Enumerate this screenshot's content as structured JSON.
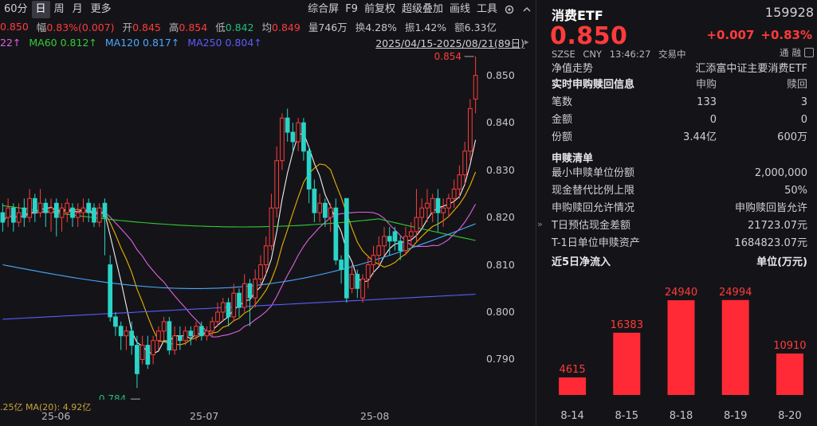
{
  "toolbar": {
    "periods": [
      "60分",
      "日",
      "周",
      "月",
      "更多"
    ],
    "active_period": "日",
    "tools": [
      "综合屏",
      "F9",
      "前复权",
      "超级叠加",
      "画线",
      "工具"
    ]
  },
  "stats": {
    "close": "0.850",
    "amp_label": "幅",
    "amp_value": "0.83%(0.007)",
    "open_label": "开",
    "open_value": "0.845",
    "high_label": "高",
    "high_value": "0.854",
    "low_label": "低",
    "low_value": "0.842",
    "avg_label": "均",
    "avg_value": "0.849",
    "vol_label": "量",
    "vol_value": "746万",
    "turnover_label": "换",
    "turnover_value": "4.28%",
    "swing_label": "振",
    "swing_value": "1.42%",
    "amount_label": "额",
    "amount_value": "6.33亿"
  },
  "ma_legend": [
    {
      "label": "22↑",
      "color": "#e060e0"
    },
    {
      "label": "MA60 0.812↑",
      "color": "#33cc33"
    },
    {
      "label": "MA120 0.817↑",
      "color": "#4aa8ff"
    },
    {
      "label": "MA250 0.804↑",
      "color": "#5b5bff"
    }
  ],
  "date_range": "2025/04/15-2025/08/21(89日)",
  "volume_legend": ".25亿  MA(20): 4.92亿",
  "chart_data": {
    "type": "candlestick",
    "y_ticks": [
      "0.850",
      "0.840",
      "0.830",
      "0.820",
      "0.810",
      "0.800",
      "0.790"
    ],
    "ylim": [
      0.7815,
      0.8555
    ],
    "x_ticks": [
      "25-06",
      "25-07",
      "25-08"
    ],
    "max_label": "0.854",
    "min_label": "0.784",
    "candles": [
      {
        "o": 0.821,
        "c": 0.819,
        "h": 0.823,
        "l": 0.817
      },
      {
        "o": 0.82,
        "c": 0.822,
        "h": 0.824,
        "l": 0.818
      },
      {
        "o": 0.822,
        "c": 0.819,
        "h": 0.823,
        "l": 0.817
      },
      {
        "o": 0.819,
        "c": 0.821,
        "h": 0.823,
        "l": 0.818
      },
      {
        "o": 0.822,
        "c": 0.82,
        "h": 0.824,
        "l": 0.818
      },
      {
        "o": 0.82,
        "c": 0.824,
        "h": 0.826,
        "l": 0.819
      },
      {
        "o": 0.824,
        "c": 0.821,
        "h": 0.825,
        "l": 0.819
      },
      {
        "o": 0.821,
        "c": 0.823,
        "h": 0.826,
        "l": 0.82
      },
      {
        "o": 0.823,
        "c": 0.821,
        "h": 0.824,
        "l": 0.818
      },
      {
        "o": 0.821,
        "c": 0.822,
        "h": 0.824,
        "l": 0.817
      },
      {
        "o": 0.823,
        "c": 0.82,
        "h": 0.824,
        "l": 0.816
      },
      {
        "o": 0.82,
        "c": 0.822,
        "h": 0.823,
        "l": 0.817
      },
      {
        "o": 0.821,
        "c": 0.823,
        "h": 0.824,
        "l": 0.819
      },
      {
        "o": 0.822,
        "c": 0.82,
        "h": 0.823,
        "l": 0.818
      },
      {
        "o": 0.82,
        "c": 0.821,
        "h": 0.823,
        "l": 0.818
      },
      {
        "o": 0.821,
        "c": 0.822,
        "h": 0.824,
        "l": 0.819
      },
      {
        "o": 0.823,
        "c": 0.821,
        "h": 0.824,
        "l": 0.819
      },
      {
        "o": 0.822,
        "c": 0.819,
        "h": 0.823,
        "l": 0.818
      },
      {
        "o": 0.819,
        "c": 0.822,
        "h": 0.823,
        "l": 0.818
      },
      {
        "o": 0.823,
        "c": 0.82,
        "h": 0.824,
        "l": 0.812
      },
      {
        "o": 0.81,
        "c": 0.799,
        "h": 0.812,
        "l": 0.798
      },
      {
        "o": 0.799,
        "c": 0.797,
        "h": 0.8,
        "l": 0.795
      },
      {
        "o": 0.797,
        "c": 0.795,
        "h": 0.798,
        "l": 0.792
      },
      {
        "o": 0.795,
        "c": 0.796,
        "h": 0.797,
        "l": 0.792
      },
      {
        "o": 0.796,
        "c": 0.793,
        "h": 0.798,
        "l": 0.791
      },
      {
        "o": 0.793,
        "c": 0.787,
        "h": 0.795,
        "l": 0.784
      },
      {
        "o": 0.79,
        "c": 0.793,
        "h": 0.795,
        "l": 0.789
      },
      {
        "o": 0.793,
        "c": 0.789,
        "h": 0.795,
        "l": 0.788
      },
      {
        "o": 0.791,
        "c": 0.794,
        "h": 0.795,
        "l": 0.789
      },
      {
        "o": 0.794,
        "c": 0.796,
        "h": 0.797,
        "l": 0.792
      },
      {
        "o": 0.796,
        "c": 0.798,
        "h": 0.799,
        "l": 0.794
      },
      {
        "o": 0.798,
        "c": 0.792,
        "h": 0.799,
        "l": 0.791
      },
      {
        "o": 0.792,
        "c": 0.795,
        "h": 0.797,
        "l": 0.791
      },
      {
        "o": 0.795,
        "c": 0.794,
        "h": 0.797,
        "l": 0.792
      },
      {
        "o": 0.794,
        "c": 0.796,
        "h": 0.797,
        "l": 0.793
      },
      {
        "o": 0.796,
        "c": 0.795,
        "h": 0.797,
        "l": 0.793
      },
      {
        "o": 0.795,
        "c": 0.797,
        "h": 0.798,
        "l": 0.794
      },
      {
        "o": 0.797,
        "c": 0.795,
        "h": 0.798,
        "l": 0.794
      },
      {
        "o": 0.795,
        "c": 0.796,
        "h": 0.797,
        "l": 0.794
      },
      {
        "o": 0.796,
        "c": 0.798,
        "h": 0.799,
        "l": 0.795
      },
      {
        "o": 0.798,
        "c": 0.8,
        "h": 0.802,
        "l": 0.797
      },
      {
        "o": 0.8,
        "c": 0.802,
        "h": 0.803,
        "l": 0.798
      },
      {
        "o": 0.802,
        "c": 0.799,
        "h": 0.803,
        "l": 0.797
      },
      {
        "o": 0.799,
        "c": 0.804,
        "h": 0.806,
        "l": 0.798
      },
      {
        "o": 0.804,
        "c": 0.801,
        "h": 0.805,
        "l": 0.799
      },
      {
        "o": 0.801,
        "c": 0.806,
        "h": 0.808,
        "l": 0.8
      },
      {
        "o": 0.806,
        "c": 0.803,
        "h": 0.807,
        "l": 0.797
      },
      {
        "o": 0.803,
        "c": 0.807,
        "h": 0.809,
        "l": 0.801
      },
      {
        "o": 0.807,
        "c": 0.81,
        "h": 0.812,
        "l": 0.805
      },
      {
        "o": 0.81,
        "c": 0.814,
        "h": 0.816,
        "l": 0.808
      },
      {
        "o": 0.814,
        "c": 0.822,
        "h": 0.825,
        "l": 0.813
      },
      {
        "o": 0.822,
        "c": 0.832,
        "h": 0.835,
        "l": 0.82
      },
      {
        "o": 0.832,
        "c": 0.841,
        "h": 0.842,
        "l": 0.83
      },
      {
        "o": 0.841,
        "c": 0.838,
        "h": 0.843,
        "l": 0.836
      },
      {
        "o": 0.838,
        "c": 0.836,
        "h": 0.84,
        "l": 0.834
      },
      {
        "o": 0.836,
        "c": 0.84,
        "h": 0.841,
        "l": 0.834
      },
      {
        "o": 0.84,
        "c": 0.834,
        "h": 0.841,
        "l": 0.832
      },
      {
        "o": 0.834,
        "c": 0.826,
        "h": 0.835,
        "l": 0.823
      },
      {
        "o": 0.826,
        "c": 0.821,
        "h": 0.828,
        "l": 0.819
      },
      {
        "o": 0.821,
        "c": 0.823,
        "h": 0.825,
        "l": 0.819
      },
      {
        "o": 0.823,
        "c": 0.82,
        "h": 0.824,
        "l": 0.818
      },
      {
        "o": 0.82,
        "c": 0.822,
        "h": 0.823,
        "l": 0.817
      },
      {
        "o": 0.822,
        "c": 0.811,
        "h": 0.824,
        "l": 0.81
      },
      {
        "o": 0.811,
        "c": 0.809,
        "h": 0.812,
        "l": 0.806
      },
      {
        "o": 0.824,
        "c": 0.803,
        "h": 0.824,
        "l": 0.802
      },
      {
        "o": 0.805,
        "c": 0.808,
        "h": 0.81,
        "l": 0.804
      },
      {
        "o": 0.808,
        "c": 0.805,
        "h": 0.809,
        "l": 0.803
      },
      {
        "o": 0.803,
        "c": 0.807,
        "h": 0.808,
        "l": 0.802
      },
      {
        "o": 0.807,
        "c": 0.81,
        "h": 0.812,
        "l": 0.805
      },
      {
        "o": 0.81,
        "c": 0.812,
        "h": 0.814,
        "l": 0.808
      },
      {
        "o": 0.812,
        "c": 0.814,
        "h": 0.816,
        "l": 0.81
      },
      {
        "o": 0.814,
        "c": 0.816,
        "h": 0.818,
        "l": 0.812
      },
      {
        "o": 0.816,
        "c": 0.815,
        "h": 0.818,
        "l": 0.812
      },
      {
        "o": 0.817,
        "c": 0.815,
        "h": 0.818,
        "l": 0.813
      },
      {
        "o": 0.815,
        "c": 0.813,
        "h": 0.816,
        "l": 0.811
      },
      {
        "o": 0.813,
        "c": 0.816,
        "h": 0.818,
        "l": 0.812
      },
      {
        "o": 0.816,
        "c": 0.817,
        "h": 0.819,
        "l": 0.814
      },
      {
        "o": 0.817,
        "c": 0.82,
        "h": 0.826,
        "l": 0.815
      },
      {
        "o": 0.82,
        "c": 0.822,
        "h": 0.824,
        "l": 0.818
      },
      {
        "o": 0.822,
        "c": 0.823,
        "h": 0.826,
        "l": 0.819
      },
      {
        "o": 0.821,
        "c": 0.824,
        "h": 0.825,
        "l": 0.819
      },
      {
        "o": 0.824,
        "c": 0.821,
        "h": 0.826,
        "l": 0.817
      },
      {
        "o": 0.821,
        "c": 0.822,
        "h": 0.824,
        "l": 0.818
      },
      {
        "o": 0.822,
        "c": 0.824,
        "h": 0.825,
        "l": 0.82
      },
      {
        "o": 0.824,
        "c": 0.826,
        "h": 0.828,
        "l": 0.822
      },
      {
        "o": 0.826,
        "c": 0.829,
        "h": 0.831,
        "l": 0.824
      },
      {
        "o": 0.829,
        "c": 0.834,
        "h": 0.836,
        "l": 0.827
      },
      {
        "o": 0.834,
        "c": 0.843,
        "h": 0.845,
        "l": 0.832
      },
      {
        "o": 0.845,
        "c": 0.85,
        "h": 0.854,
        "l": 0.842
      }
    ],
    "ma_series": [
      {
        "name": "MA5",
        "color": "#f0f0f0"
      },
      {
        "name": "MA10",
        "color": "#e8b000"
      },
      {
        "name": "MA20",
        "color": "#e060e0"
      },
      {
        "name": "MA60",
        "color": "#33cc33"
      },
      {
        "name": "MA120",
        "color": "#4aa8ff"
      },
      {
        "name": "MA250",
        "color": "#5b5bff"
      }
    ],
    "colors": {
      "up": "#ff3b3b",
      "down": "#2ad4c8"
    }
  },
  "quote": {
    "name": "消费ETF",
    "code": "159928",
    "price": "0.850",
    "change": "+0.007",
    "change_pct": "+0.83%",
    "market": "SZSE",
    "currency": "CNY",
    "time": "13:46:27",
    "status": "交易中",
    "tags": [
      "通",
      "融"
    ]
  },
  "nav_section": {
    "label": "净值走势",
    "fund_name": "汇添富中证主要消费ETF"
  },
  "realtime_table": {
    "title": "实时申购赎回信息",
    "col_buy": "申购",
    "col_sell": "赎回",
    "rows": [
      {
        "label": "笔数",
        "buy": "133",
        "sell": "3"
      },
      {
        "label": "金额",
        "buy": "0",
        "sell": "0"
      },
      {
        "label": "份额",
        "buy": "3.44亿",
        "sell": "600万"
      }
    ]
  },
  "redemption_list": {
    "title": "申赎清单",
    "rows": [
      {
        "label": "最小申赎单位份额",
        "value": "2,000,000"
      },
      {
        "label": "现金替代比例上限",
        "value": "50%"
      },
      {
        "label": "申购赎回允许情况",
        "value": "申购赎回皆允许"
      },
      {
        "label": "T日预估现金差额",
        "value": "21723.07元"
      },
      {
        "label": "T-1日单位申赎资产",
        "value": "1684823.07元"
      }
    ]
  },
  "net_inflow": {
    "title": "近5日净流入",
    "unit": "单位(万元)",
    "chart_data": {
      "type": "bar",
      "categories": [
        "8-14",
        "8-15",
        "8-18",
        "8-19",
        "8-20"
      ],
      "values": [
        4615,
        16383,
        24940,
        24994,
        10910
      ],
      "bar_color": "#ff2a35"
    }
  }
}
